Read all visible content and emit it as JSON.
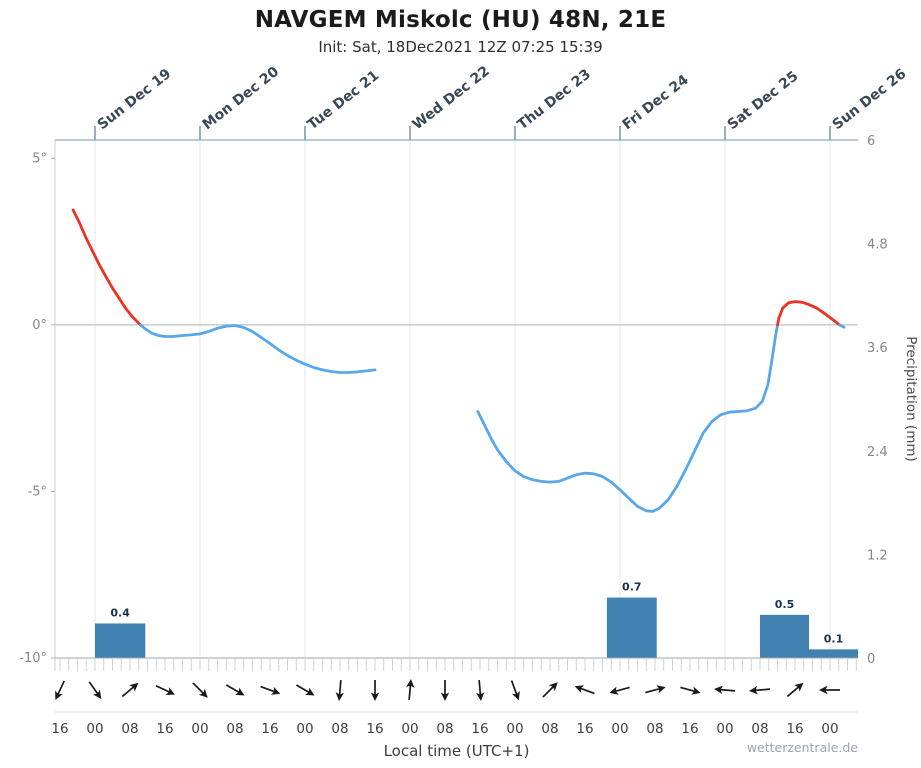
{
  "chart_data": {
    "type": "line",
    "title": "NAVGEM Miskolc (HU) 48N, 21E",
    "subtitle": "Init: Sat, 18Dec2021 12Z 07:25 15:39",
    "xlabel": "Local time (UTC+1)",
    "x_unit": "hours since Sat 18 Dec 2021 00:00 local",
    "x_domain": [
      14.86,
      198.4
    ],
    "temp_axis": {
      "range": [
        -10,
        5.55
      ],
      "ticks": [
        {
          "value": 5,
          "label": "5°"
        },
        {
          "value": 0,
          "label": "0°"
        },
        {
          "value": -5,
          "label": "-5°"
        },
        {
          "value": -10,
          "label": "-10°"
        }
      ]
    },
    "precip_axis": {
      "label": "Precipitation (mm)",
      "range": [
        0,
        6
      ],
      "ticks": [
        {
          "value": 6,
          "label": "6"
        },
        {
          "value": 4.8,
          "label": "4.8"
        },
        {
          "value": 3.6,
          "label": "3.6"
        },
        {
          "value": 2.4,
          "label": "2.4"
        },
        {
          "value": 1.2,
          "label": "1.2"
        },
        {
          "value": 0,
          "label": "0"
        }
      ]
    },
    "day_ticks": [
      {
        "t": 24,
        "label": "Sun Dec 19"
      },
      {
        "t": 48,
        "label": "Mon Dec 20"
      },
      {
        "t": 72,
        "label": "Tue Dec 21"
      },
      {
        "t": 96,
        "label": "Wed Dec 22"
      },
      {
        "t": 120,
        "label": "Thu Dec 23"
      },
      {
        "t": 144,
        "label": "Fri Dec 24"
      },
      {
        "t": 168,
        "label": "Sat Dec 25"
      },
      {
        "t": 192,
        "label": "Sun Dec 26"
      }
    ],
    "hour_ticks": [
      {
        "t": 16,
        "label": "16"
      },
      {
        "t": 24,
        "label": "00"
      },
      {
        "t": 32,
        "label": "08"
      },
      {
        "t": 40,
        "label": "16"
      },
      {
        "t": 48,
        "label": "00"
      },
      {
        "t": 56,
        "label": "08"
      },
      {
        "t": 64,
        "label": "16"
      },
      {
        "t": 72,
        "label": "00"
      },
      {
        "t": 80,
        "label": "08"
      },
      {
        "t": 88,
        "label": "16"
      },
      {
        "t": 96,
        "label": "00"
      },
      {
        "t": 104,
        "label": "08"
      },
      {
        "t": 112,
        "label": "16"
      },
      {
        "t": 120,
        "label": "00"
      },
      {
        "t": 128,
        "label": "08"
      },
      {
        "t": 136,
        "label": "16"
      },
      {
        "t": 144,
        "label": "00"
      },
      {
        "t": 152,
        "label": "08"
      },
      {
        "t": 160,
        "label": "16"
      },
      {
        "t": 168,
        "label": "00"
      },
      {
        "t": 176,
        "label": "08"
      },
      {
        "t": 184,
        "label": "16"
      },
      {
        "t": 192,
        "label": "00"
      }
    ],
    "temperature": {
      "unit": "°C",
      "color_above": "#ef3124",
      "color_below": "#57a8ea",
      "segments": [
        [
          [
            19,
            3.45
          ],
          [
            20.5,
            3.05
          ],
          [
            22,
            2.6
          ],
          [
            23.5,
            2.2
          ],
          [
            25,
            1.8
          ],
          [
            26.5,
            1.45
          ],
          [
            28,
            1.1
          ],
          [
            29.5,
            0.8
          ],
          [
            31,
            0.5
          ],
          [
            32.5,
            0.25
          ],
          [
            34,
            0.05
          ],
          [
            35.5,
            -0.12
          ],
          [
            37,
            -0.25
          ],
          [
            38.5,
            -0.32
          ],
          [
            40,
            -0.35
          ],
          [
            42,
            -0.35
          ],
          [
            44,
            -0.32
          ],
          [
            46,
            -0.3
          ],
          [
            48,
            -0.27
          ],
          [
            50,
            -0.2
          ],
          [
            52,
            -0.1
          ],
          [
            54,
            -0.04
          ],
          [
            56,
            -0.02
          ],
          [
            58,
            -0.08
          ],
          [
            60,
            -0.2
          ],
          [
            62,
            -0.38
          ],
          [
            64,
            -0.56
          ],
          [
            66,
            -0.75
          ],
          [
            68,
            -0.92
          ],
          [
            70,
            -1.06
          ],
          [
            72,
            -1.18
          ],
          [
            74,
            -1.28
          ],
          [
            76,
            -1.35
          ],
          [
            78,
            -1.4
          ],
          [
            80,
            -1.43
          ],
          [
            82,
            -1.43
          ],
          [
            84,
            -1.41
          ],
          [
            86,
            -1.38
          ],
          [
            88,
            -1.35
          ]
        ],
        [
          [
            111.5,
            -2.6
          ],
          [
            113,
            -3.0
          ],
          [
            114.5,
            -3.4
          ],
          [
            116,
            -3.75
          ],
          [
            118,
            -4.1
          ],
          [
            120,
            -4.38
          ],
          [
            122,
            -4.55
          ],
          [
            124,
            -4.65
          ],
          [
            126,
            -4.7
          ],
          [
            128,
            -4.72
          ],
          [
            130,
            -4.7
          ],
          [
            132,
            -4.6
          ],
          [
            134,
            -4.5
          ],
          [
            136,
            -4.45
          ],
          [
            138,
            -4.47
          ],
          [
            140,
            -4.55
          ],
          [
            142,
            -4.72
          ],
          [
            144,
            -4.95
          ],
          [
            146,
            -5.2
          ],
          [
            148,
            -5.45
          ],
          [
            150,
            -5.58
          ],
          [
            151.5,
            -5.6
          ],
          [
            153,
            -5.5
          ],
          [
            155,
            -5.25
          ],
          [
            157,
            -4.85
          ],
          [
            159,
            -4.35
          ],
          [
            161,
            -3.8
          ],
          [
            163,
            -3.25
          ],
          [
            165,
            -2.9
          ],
          [
            167,
            -2.7
          ],
          [
            169,
            -2.62
          ],
          [
            171,
            -2.6
          ],
          [
            173,
            -2.58
          ],
          [
            175,
            -2.5
          ],
          [
            176.5,
            -2.3
          ],
          [
            177.8,
            -1.8
          ],
          [
            178.8,
            -1.0
          ],
          [
            179.6,
            -0.3
          ],
          [
            180.3,
            0.2
          ],
          [
            181.2,
            0.5
          ],
          [
            182.5,
            0.66
          ],
          [
            184,
            0.7
          ],
          [
            185.5,
            0.68
          ],
          [
            187,
            0.62
          ],
          [
            189,
            0.5
          ],
          [
            191,
            0.32
          ],
          [
            193,
            0.12
          ],
          [
            194.2,
            0.0
          ],
          [
            195.2,
            -0.07
          ]
        ]
      ]
    },
    "precipitation": {
      "unit": "mm",
      "bar_color": "#4282b3",
      "value_color": "#16324f",
      "bars": [
        {
          "t0": 24,
          "t1": 35.5,
          "value": 0.4,
          "label": "0.4"
        },
        {
          "t0": 141,
          "t1": 152.4,
          "value": 0.7,
          "label": "0.7"
        },
        {
          "t0": 176,
          "t1": 187.2,
          "value": 0.5,
          "label": "0.5"
        },
        {
          "t0": 187.2,
          "t1": 198.4,
          "value": 0.1,
          "label": "0.1"
        }
      ]
    },
    "wind_arrows": {
      "color": "#1a1a1a",
      "arrows": [
        {
          "t": 16,
          "angle_deg": 115
        },
        {
          "t": 24,
          "angle_deg": 55
        },
        {
          "t": 32,
          "angle_deg": -40
        },
        {
          "t": 40,
          "angle_deg": 25
        },
        {
          "t": 48,
          "angle_deg": 45
        },
        {
          "t": 56,
          "angle_deg": 30
        },
        {
          "t": 64,
          "angle_deg": 20
        },
        {
          "t": 72,
          "angle_deg": 30
        },
        {
          "t": 80,
          "angle_deg": 95
        },
        {
          "t": 88,
          "angle_deg": 90
        },
        {
          "t": 96,
          "angle_deg": -85
        },
        {
          "t": 104,
          "angle_deg": 90
        },
        {
          "t": 112,
          "angle_deg": 85
        },
        {
          "t": 120,
          "angle_deg": 70
        },
        {
          "t": 128,
          "angle_deg": -45
        },
        {
          "t": 136,
          "angle_deg": -160
        },
        {
          "t": 144,
          "angle_deg": 165
        },
        {
          "t": 152,
          "angle_deg": -15
        },
        {
          "t": 160,
          "angle_deg": 15
        },
        {
          "t": 168,
          "angle_deg": 185
        },
        {
          "t": 176,
          "angle_deg": 175
        },
        {
          "t": 184,
          "angle_deg": -40
        },
        {
          "t": 192,
          "angle_deg": 180
        }
      ]
    },
    "legend_position": "none",
    "grid": "vertical day lines + zero line"
  },
  "watermark": "wetterzentrale.de"
}
